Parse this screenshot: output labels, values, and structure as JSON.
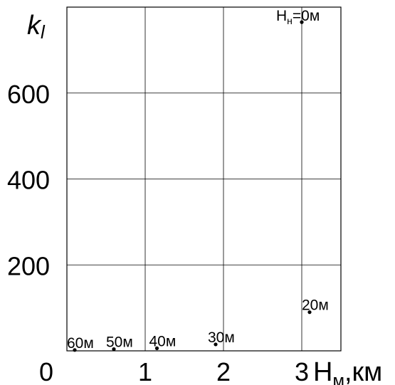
{
  "chart_data": {
    "type": "scatter",
    "ylabel": "k",
    "ylabel_subscript": "l",
    "xlabel": "H",
    "xlabel_subscript": "м",
    "xlabel_unit": ",км",
    "xlim": [
      0,
      3.5
    ],
    "ylim": [
      0,
      800
    ],
    "x_ticks": [
      {
        "value": 0,
        "label": "0"
      },
      {
        "value": 1,
        "label": "1"
      },
      {
        "value": 2,
        "label": "2"
      },
      {
        "value": 3,
        "label": "3"
      }
    ],
    "y_ticks": [
      {
        "value": 200,
        "label": "200"
      },
      {
        "value": 400,
        "label": "400"
      },
      {
        "value": 600,
        "label": "600"
      }
    ],
    "grid": true,
    "points": [
      {
        "x": 3.0,
        "y": 765,
        "label": "H",
        "label_sub": "н",
        "label_rest": "=0м"
      },
      {
        "x": 3.1,
        "y": 90,
        "label": "20м"
      },
      {
        "x": 1.9,
        "y": 15,
        "label": "30м"
      },
      {
        "x": 1.15,
        "y": 6,
        "label": "40м"
      },
      {
        "x": 0.6,
        "y": 4,
        "label": "50м"
      },
      {
        "x": 0.1,
        "y": 2,
        "label": "60м"
      }
    ]
  }
}
